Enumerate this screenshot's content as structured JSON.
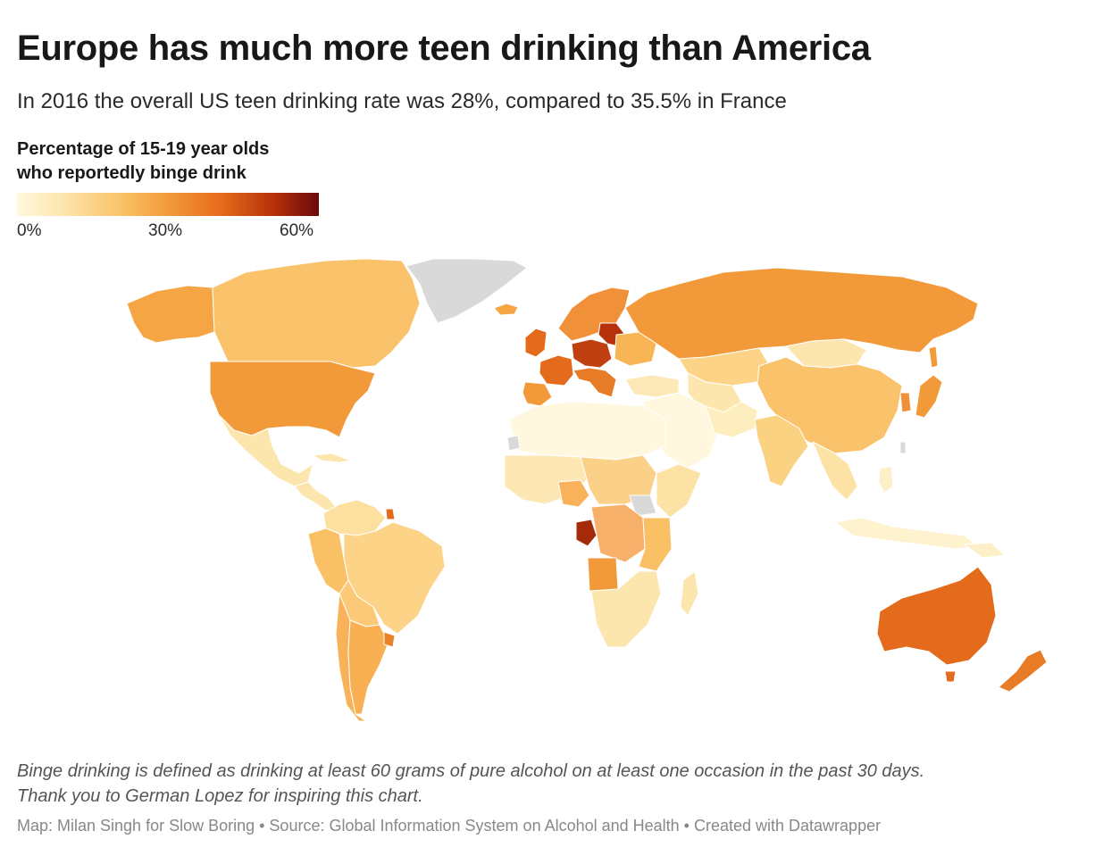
{
  "header": {
    "title": "Europe has much more teen drinking than America",
    "subtitle": "In 2016 the overall US teen drinking rate was 28%, compared to 35.5% in France"
  },
  "legend": {
    "title_line1": "Percentage of 15-19 year olds",
    "title_line2": "who reportedly binge drink",
    "ticks": [
      "0%",
      "30%",
      "60%"
    ],
    "colors": [
      "#fff8df",
      "#fde6ae",
      "#f9c266",
      "#f29a3a",
      "#e56b1c",
      "#b63009",
      "#6b0a0a"
    ],
    "no_data_color": "#d9d9d9"
  },
  "note": {
    "line1": "Binge drinking is defined as drinking at least 60 grams of pure alcohol on at least one occasion in the past 30 days.",
    "line2": "Thank you to German Lopez for inspiring this chart."
  },
  "footer": {
    "text": "Map: Milan Singh for Slow Boring • Source: Global Information System on Alcohol and Health • Created with Datawrapper"
  }
}
